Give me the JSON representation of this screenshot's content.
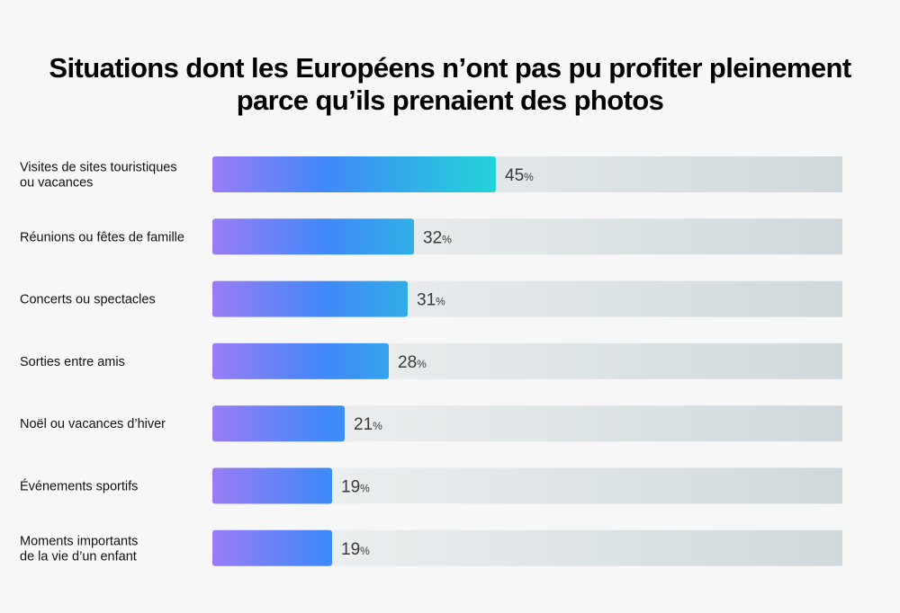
{
  "chart_data": {
    "type": "bar",
    "orientation": "horizontal",
    "title": "Situations dont les Européens n’ont pas pu profiter pleinement parce qu’ils prenaient des photos",
    "title_lines": [
      "Situations dont les Européens n’ont pas pu profiter pleinement",
      "parce qu’ils prenaient des photos"
    ],
    "categories": [
      [
        "Visites de sites touristiques",
        "ou vacances"
      ],
      [
        "Réunions ou fêtes de famille"
      ],
      [
        "Concerts ou spectacles"
      ],
      [
        "Sorties entre amis"
      ],
      [
        "Noël ou vacances d’hiver"
      ],
      [
        "Événements sportifs"
      ],
      [
        "Moments importants",
        "de la vie d’un enfant"
      ]
    ],
    "values": [
      45,
      32,
      31,
      28,
      21,
      19,
      19
    ],
    "value_unit": "%",
    "xlim": [
      0,
      100
    ],
    "grid": false,
    "legend": "none",
    "colors": {
      "bar_start": "#9a7cf5",
      "bar_mid": "#4088f8",
      "bar_end": "#22d4d8",
      "track_start": "#f2f3f4",
      "track_end": "#cfd9dc"
    }
  }
}
